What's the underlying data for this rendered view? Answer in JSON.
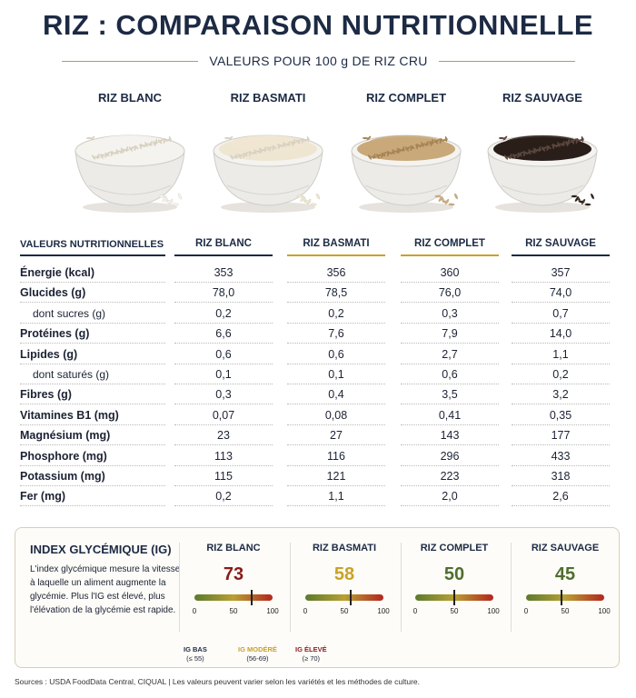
{
  "title": "RIZ : COMPARAISON NUTRITIONNELLE",
  "subtitle": "VALEURS POUR 100 g DE RIZ CRU",
  "colors": {
    "navy": "#1c2a44",
    "gold": "#b89a5a",
    "ig_red": "#8b1a1a",
    "ig_gold": "#c9a227",
    "ig_green": "#4f6e2e"
  },
  "varieties": [
    {
      "name": "RIZ BLANC",
      "grain_color": "#f5f3ee",
      "line_color": "#1c2a44"
    },
    {
      "name": "RIZ BASMATI",
      "grain_color": "#efe6d2",
      "line_color": "#c9a227"
    },
    {
      "name": "RIZ COMPLET",
      "grain_color": "#c9a97a",
      "line_color": "#c9a227"
    },
    {
      "name": "RIZ SAUVAGE",
      "grain_color": "#2a1e1a",
      "line_color": "#1c2a44"
    }
  ],
  "table": {
    "header_label": "VALEURS NUTRITIONNELLES",
    "rows": [
      {
        "label": "Énergie (kcal)",
        "sub": false,
        "values": [
          "353",
          "356",
          "360",
          "357"
        ]
      },
      {
        "label": "Glucides (g)",
        "sub": false,
        "values": [
          "78,0",
          "78,5",
          "76,0",
          "74,0"
        ]
      },
      {
        "label": "dont sucres (g)",
        "sub": true,
        "values": [
          "0,2",
          "0,2",
          "0,3",
          "0,7"
        ]
      },
      {
        "label": "Protéines (g)",
        "sub": false,
        "values": [
          "6,6",
          "7,6",
          "7,9",
          "14,0"
        ]
      },
      {
        "label": "Lipides (g)",
        "sub": false,
        "values": [
          "0,6",
          "0,6",
          "2,7",
          "1,1"
        ]
      },
      {
        "label": "dont saturés (g)",
        "sub": true,
        "values": [
          "0,1",
          "0,1",
          "0,6",
          "0,2"
        ]
      },
      {
        "label": "Fibres (g)",
        "sub": false,
        "values": [
          "0,3",
          "0,4",
          "3,5",
          "3,2"
        ]
      },
      {
        "label": "Vitamines B1 (mg)",
        "sub": false,
        "values": [
          "0,07",
          "0,08",
          "0,41",
          "0,35"
        ]
      },
      {
        "label": "Magnésium (mg)",
        "sub": false,
        "values": [
          "23",
          "27",
          "143",
          "177"
        ]
      },
      {
        "label": "Phosphore (mg)",
        "sub": false,
        "values": [
          "113",
          "116",
          "296",
          "433"
        ]
      },
      {
        "label": "Potassium (mg)",
        "sub": false,
        "values": [
          "115",
          "121",
          "223",
          "318"
        ]
      },
      {
        "label": "Fer (mg)",
        "sub": false,
        "values": [
          "0,2",
          "1,1",
          "2,0",
          "2,6"
        ]
      }
    ]
  },
  "ig": {
    "title": "INDEX GLYCÉMIQUE (IG)",
    "description": "L'index glycémique mesure la vitesse à laquelle un aliment augmente la glycémie. Plus l'IG est élevé, plus l'élévation de la glycémie est rapide.",
    "items": [
      {
        "name": "RIZ BLANC",
        "value": 73,
        "value_text": "73",
        "color": "#8b1a1a"
      },
      {
        "name": "RIZ BASMATI",
        "value": 58,
        "value_text": "58",
        "color": "#c9a227"
      },
      {
        "name": "RIZ COMPLET",
        "value": 50,
        "value_text": "50",
        "color": "#4f6e2e"
      },
      {
        "name": "RIZ SAUVAGE",
        "value": 45,
        "value_text": "45",
        "color": "#4f6e2e"
      }
    ],
    "ticks": [
      "0",
      "50",
      "100"
    ],
    "legend": [
      {
        "label": "IG BAS",
        "range": "(≤ 55)",
        "color": "#1c2a44"
      },
      {
        "label": "IG MODÉRÉ",
        "range": "(56-69)",
        "color": "#c9a227"
      },
      {
        "label": "IG ÉLEVÉ",
        "range": "(≥ 70)",
        "color": "#8b1a1a"
      }
    ]
  },
  "sources": "Sources : USDA FoodData Central, CIQUAL  |  Les valeurs peuvent varier selon les variétés et les méthodes de culture."
}
